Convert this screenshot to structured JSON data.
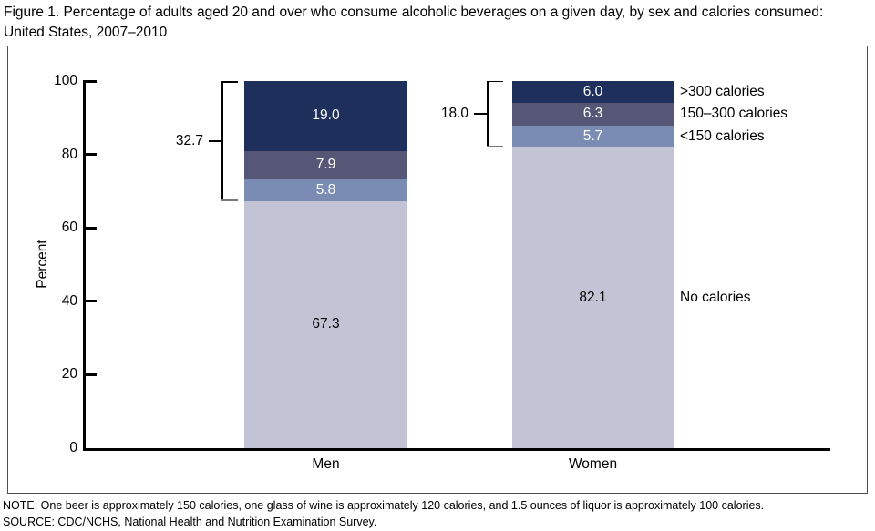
{
  "figure": {
    "title": "Figure 1. Percentage of adults aged 20 and over who consume alcoholic beverages on a given day, by sex and calories consumed: United States, 2007–2010",
    "note": "NOTE: One beer is approximately 150 calories, one glass of wine is approximately 120 calories, and 1.5 ounces of liquor is approximately 100 calories.",
    "source": "SOURCE: CDC/NCHS, National Health and Nutrition Examination Survey."
  },
  "chart_data": {
    "type": "bar",
    "stacked": true,
    "grid": false,
    "ylabel": "Percent",
    "ylim": [
      0,
      100
    ],
    "yticks": [
      0,
      20,
      40,
      60,
      80,
      100
    ],
    "categories": [
      "Men",
      "Women"
    ],
    "series": [
      {
        "name": "No calories",
        "values": [
          67.3,
          82.1
        ],
        "color": "#c2c3d5",
        "text_color": "#000000"
      },
      {
        "name": "<150 calories",
        "values": [
          5.8,
          5.7
        ],
        "color": "#7a8cb3",
        "text_color": "#ffffff"
      },
      {
        "name": "150–300 calories",
        "values": [
          7.9,
          6.3
        ],
        "color": "#565677",
        "text_color": "#ffffff"
      },
      {
        "name": ">300 calories",
        "values": [
          19.0,
          6.0
        ],
        "color": "#1d2f5a",
        "text_color": "#ffffff"
      }
    ],
    "bracket_totals": [
      32.7,
      18.0
    ],
    "legend_entries": [
      ">300 calories",
      "150–300 calories",
      "<150 calories",
      "No calories"
    ],
    "legend_position": "right-of-second-bar",
    "axis_color": "#000000"
  }
}
